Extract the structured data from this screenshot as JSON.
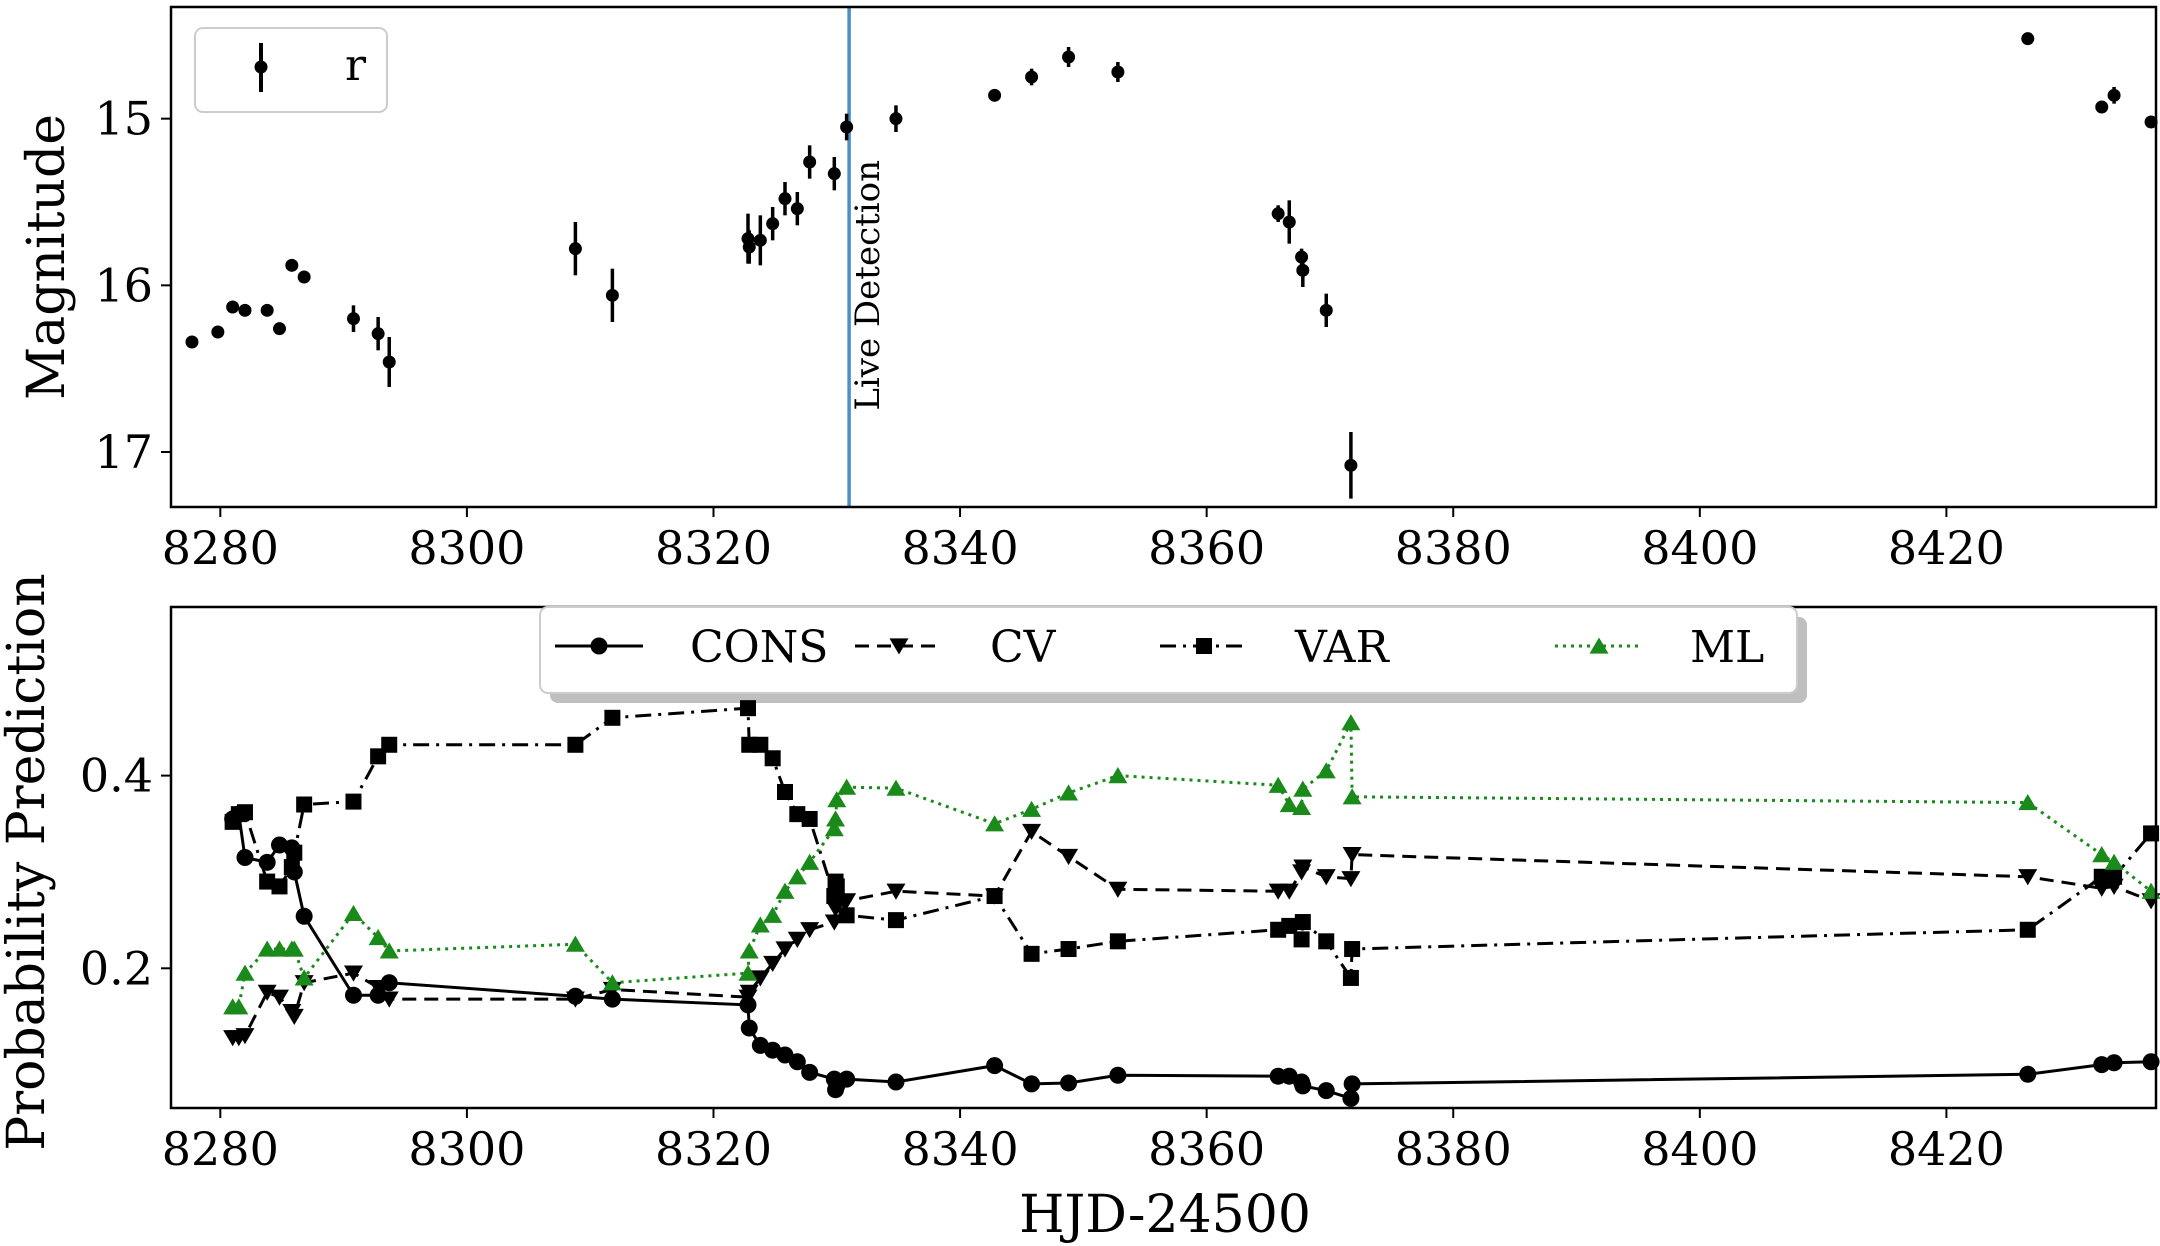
{
  "figure": {
    "xlabel": "HJD-24500",
    "colors": {
      "cons": "#000000",
      "cv": "#000000",
      "var": "#000000",
      "ml": "#1a8a1a",
      "detection_line": "#4a90c4"
    }
  },
  "chart_data": [
    {
      "type": "scatter",
      "name": "light-curve",
      "ylabel": "Magnitude",
      "xlim": [
        8276,
        8437
      ],
      "ylim": [
        17.33,
        14.33
      ],
      "y_inverted": true,
      "xticks": [
        8280,
        8300,
        8320,
        8340,
        8360,
        8380,
        8400,
        8420
      ],
      "xtick_labels": [
        "8280",
        "8300",
        "8320",
        "8340",
        "8360",
        "8380",
        "8400",
        "8420"
      ],
      "yticks": [
        15,
        16,
        17
      ],
      "ytick_labels": [
        "15",
        "16",
        "17"
      ],
      "legend": {
        "label": "r",
        "position": "top-left"
      },
      "annotation": {
        "text": "Live Detection",
        "x": 8331
      },
      "series": [
        {
          "name": "r",
          "points": [
            {
              "x": 8277.7,
              "y": 16.34,
              "err": 0.02
            },
            {
              "x": 8279.8,
              "y": 16.28,
              "err": 0.02
            },
            {
              "x": 8281.0,
              "y": 16.13,
              "err": 0.02
            },
            {
              "x": 8282.0,
              "y": 16.15,
              "err": 0.02
            },
            {
              "x": 8283.8,
              "y": 16.15,
              "err": 0.02
            },
            {
              "x": 8284.8,
              "y": 16.26,
              "err": 0.02
            },
            {
              "x": 8285.8,
              "y": 15.88,
              "err": 0.02
            },
            {
              "x": 8286.8,
              "y": 15.95,
              "err": 0.02
            },
            {
              "x": 8290.8,
              "y": 16.2,
              "err": 0.08
            },
            {
              "x": 8292.8,
              "y": 16.29,
              "err": 0.1
            },
            {
              "x": 8293.7,
              "y": 16.46,
              "err": 0.15
            },
            {
              "x": 8308.8,
              "y": 15.78,
              "err": 0.16
            },
            {
              "x": 8311.8,
              "y": 16.06,
              "err": 0.16
            },
            {
              "x": 8322.8,
              "y": 15.72,
              "err": 0.15
            },
            {
              "x": 8322.9,
              "y": 15.77,
              "err": 0.1
            },
            {
              "x": 8323.8,
              "y": 15.73,
              "err": 0.15
            },
            {
              "x": 8324.8,
              "y": 15.63,
              "err": 0.1
            },
            {
              "x": 8325.8,
              "y": 15.48,
              "err": 0.1
            },
            {
              "x": 8326.8,
              "y": 15.54,
              "err": 0.1
            },
            {
              "x": 8327.8,
              "y": 15.26,
              "err": 0.1
            },
            {
              "x": 8329.8,
              "y": 15.33,
              "err": 0.1
            },
            {
              "x": 8330.8,
              "y": 15.05,
              "err": 0.08
            },
            {
              "x": 8334.8,
              "y": 15.0,
              "err": 0.08
            },
            {
              "x": 8342.8,
              "y": 14.86,
              "err": 0.02
            },
            {
              "x": 8345.8,
              "y": 14.75,
              "err": 0.05
            },
            {
              "x": 8348.8,
              "y": 14.63,
              "err": 0.06
            },
            {
              "x": 8352.8,
              "y": 14.72,
              "err": 0.06
            },
            {
              "x": 8365.8,
              "y": 15.57,
              "err": 0.05
            },
            {
              "x": 8366.7,
              "y": 15.62,
              "err": 0.13
            },
            {
              "x": 8367.7,
              "y": 15.83,
              "err": 0.05
            },
            {
              "x": 8367.8,
              "y": 15.91,
              "err": 0.1
            },
            {
              "x": 8369.7,
              "y": 16.15,
              "err": 0.1
            },
            {
              "x": 8371.7,
              "y": 17.08,
              "err": 0.2
            },
            {
              "x": 8426.6,
              "y": 14.52,
              "err": 0.02
            },
            {
              "x": 8432.6,
              "y": 14.93,
              "err": 0.02
            },
            {
              "x": 8433.6,
              "y": 14.86,
              "err": 0.05
            },
            {
              "x": 8436.6,
              "y": 15.02,
              "err": 0.02
            }
          ]
        }
      ]
    },
    {
      "type": "line",
      "name": "probability-predictions",
      "ylabel": "Probability Prediction",
      "xlabel": "HJD-24500",
      "xlim": [
        8276,
        8437
      ],
      "ylim": [
        0.055,
        0.575
      ],
      "xticks": [
        8280,
        8300,
        8320,
        8340,
        8360,
        8380,
        8400,
        8420
      ],
      "xtick_labels": [
        "8280",
        "8300",
        "8320",
        "8340",
        "8360",
        "8380",
        "8400",
        "8420"
      ],
      "yticks": [
        0.2,
        0.4
      ],
      "ytick_labels": [
        "0.2",
        "0.4"
      ],
      "legend": {
        "position": "top-center",
        "entries": [
          "CONS",
          "CV",
          "VAR",
          "ML"
        ]
      },
      "x": [
        8281.0,
        8281.5,
        8282.0,
        8283.8,
        8284.8,
        8285.8,
        8286.0,
        8286.8,
        8290.8,
        8292.8,
        8293.7,
        8308.8,
        8311.8,
        8322.8,
        8322.9,
        8323.8,
        8324.8,
        8325.8,
        8326.8,
        8327.8,
        8329.8,
        8329.9,
        8330.0,
        8330.8,
        8334.8,
        8342.8,
        8345.8,
        8348.8,
        8352.8,
        8365.8,
        8366.7,
        8367.7,
        8367.8,
        8369.7,
        8371.7,
        8371.8,
        8426.6,
        8432.6,
        8433.6,
        8436.6
      ],
      "series": [
        {
          "name": "CONS",
          "style": "solid",
          "marker": "circle",
          "values": [
            0.355,
            0.36,
            0.315,
            0.31,
            0.328,
            0.325,
            0.3,
            0.254,
            0.172,
            0.172,
            0.185,
            0.171,
            0.168,
            0.162,
            0.138,
            0.12,
            0.115,
            0.11,
            0.103,
            0.092,
            0.085,
            0.074,
            0.078,
            0.085,
            0.082,
            0.099,
            0.08,
            0.081,
            0.089,
            0.088,
            0.088,
            0.082,
            0.078,
            0.073,
            0.065,
            0.08,
            0.09,
            0.1,
            0.102,
            0.103
          ]
        },
        {
          "name": "CV",
          "style": "dashed",
          "marker": "triangle-down",
          "values": [
            0.128,
            0.128,
            0.13,
            0.175,
            0.17,
            0.155,
            0.15,
            0.185,
            0.195,
            0.18,
            0.168,
            0.168,
            0.178,
            0.17,
            0.175,
            0.19,
            0.205,
            0.22,
            0.23,
            0.24,
            0.248,
            0.262,
            0.265,
            0.27,
            0.28,
            0.275,
            0.342,
            0.316,
            0.282,
            0.28,
            0.28,
            0.3,
            0.305,
            0.295,
            0.293,
            0.318,
            0.295,
            0.283,
            0.285,
            0.27
          ]
        },
        {
          "name": "VAR",
          "style": "dashdot",
          "marker": "square",
          "values": [
            0.352,
            0.36,
            0.362,
            0.29,
            0.285,
            0.305,
            0.32,
            0.37,
            0.373,
            0.42,
            0.432,
            0.432,
            0.46,
            0.47,
            0.432,
            0.432,
            0.418,
            0.383,
            0.36,
            0.355,
            0.275,
            0.29,
            0.285,
            0.255,
            0.25,
            0.275,
            0.215,
            0.22,
            0.228,
            0.24,
            0.244,
            0.23,
            0.248,
            0.228,
            0.19,
            0.22,
            0.24,
            0.295,
            0.295,
            0.34
          ]
        },
        {
          "name": "ML",
          "style": "dotted",
          "marker": "triangle-up",
          "values": [
            0.16,
            0.16,
            0.195,
            0.22,
            0.22,
            0.22,
            0.22,
            0.19,
            0.257,
            0.232,
            0.218,
            0.225,
            0.185,
            0.195,
            0.218,
            0.245,
            0.255,
            0.28,
            0.295,
            0.31,
            0.345,
            0.355,
            0.375,
            0.388,
            0.387,
            0.35,
            0.365,
            0.382,
            0.4,
            0.39,
            0.37,
            0.367,
            0.386,
            0.405,
            0.455,
            0.378,
            0.372,
            0.318,
            0.31,
            0.28
          ]
        }
      ]
    }
  ]
}
